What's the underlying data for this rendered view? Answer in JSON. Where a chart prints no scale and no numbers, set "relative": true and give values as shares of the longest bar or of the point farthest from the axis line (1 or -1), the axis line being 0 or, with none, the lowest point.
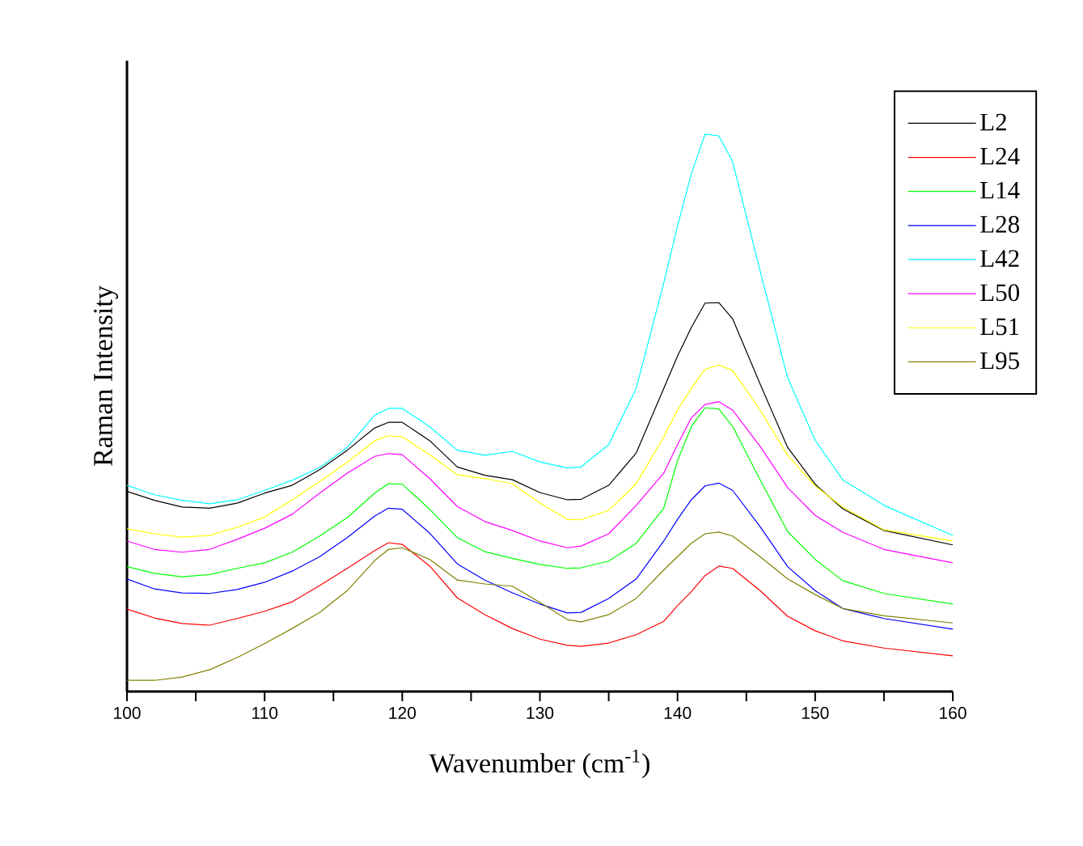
{
  "chart_data": {
    "type": "line",
    "relative": true,
    "xlabel": "Wavenumber (cm$^{-1}$)",
    "ylabel": "Raman Intensity",
    "legend": "top right",
    "xlim": [
      100,
      160
    ],
    "xticks": [
      100,
      {
        "value": 105,
        "label": null
      },
      110,
      {
        "value": 115,
        "label": null
      },
      120,
      {
        "value": 125,
        "label": null
      },
      130,
      {
        "value": 135,
        "label": null
      },
      140,
      {
        "value": 145,
        "label": null
      },
      150,
      {
        "value": 155,
        "label": null
      },
      160
    ],
    "x": [
      100,
      102,
      104,
      106,
      108,
      110,
      112,
      114,
      116,
      118,
      119,
      120,
      122,
      124,
      126,
      128,
      130,
      132,
      133,
      135,
      137,
      139,
      140,
      141,
      142,
      143,
      144,
      146,
      148,
      150,
      152,
      155,
      160
    ],
    "series": [
      {
        "name": "L2",
        "color": "#000000",
        "values": [
          0.359,
          0.343,
          0.331,
          0.329,
          0.338,
          0.356,
          0.37,
          0.398,
          0.433,
          0.473,
          0.483,
          0.483,
          0.45,
          0.403,
          0.388,
          0.38,
          0.357,
          0.344,
          0.345,
          0.37,
          0.428,
          0.544,
          0.602,
          0.653,
          0.697,
          0.698,
          0.669,
          0.552,
          0.438,
          0.372,
          0.328,
          0.289,
          0.263
        ]
      },
      {
        "name": "L24",
        "color": "#ff0000",
        "values": [
          0.148,
          0.132,
          0.122,
          0.119,
          0.131,
          0.144,
          0.161,
          0.19,
          0.221,
          0.253,
          0.267,
          0.264,
          0.225,
          0.168,
          0.138,
          0.113,
          0.094,
          0.083,
          0.081,
          0.087,
          0.102,
          0.126,
          0.154,
          0.179,
          0.208,
          0.225,
          0.221,
          0.181,
          0.135,
          0.109,
          0.091,
          0.078,
          0.064
        ]
      },
      {
        "name": "L14",
        "color": "#00ff00",
        "values": [
          0.224,
          0.212,
          0.206,
          0.21,
          0.221,
          0.231,
          0.25,
          0.279,
          0.312,
          0.356,
          0.373,
          0.372,
          0.327,
          0.276,
          0.251,
          0.239,
          0.228,
          0.221,
          0.222,
          0.234,
          0.266,
          0.329,
          0.414,
          0.475,
          0.509,
          0.507,
          0.476,
          0.38,
          0.287,
          0.237,
          0.199,
          0.176,
          0.157
        ]
      },
      {
        "name": "L28",
        "color": "#0000ff",
        "values": [
          0.202,
          0.184,
          0.177,
          0.176,
          0.183,
          0.196,
          0.216,
          0.242,
          0.276,
          0.315,
          0.329,
          0.327,
          0.284,
          0.229,
          0.2,
          0.177,
          0.157,
          0.141,
          0.142,
          0.167,
          0.202,
          0.27,
          0.309,
          0.344,
          0.369,
          0.374,
          0.361,
          0.296,
          0.224,
          0.181,
          0.149,
          0.131,
          0.112
        ]
      },
      {
        "name": "L42",
        "color": "#00ffff",
        "values": [
          0.37,
          0.353,
          0.343,
          0.337,
          0.344,
          0.361,
          0.379,
          0.402,
          0.438,
          0.496,
          0.508,
          0.508,
          0.475,
          0.433,
          0.424,
          0.431,
          0.412,
          0.401,
          0.403,
          0.443,
          0.544,
          0.733,
          0.835,
          0.929,
          1.0,
          0.997,
          0.951,
          0.755,
          0.563,
          0.451,
          0.38,
          0.334,
          0.28
        ]
      },
      {
        "name": "L50",
        "color": "#ff00ff",
        "values": [
          0.27,
          0.255,
          0.25,
          0.255,
          0.273,
          0.293,
          0.318,
          0.356,
          0.392,
          0.422,
          0.427,
          0.425,
          0.382,
          0.332,
          0.305,
          0.289,
          0.27,
          0.258,
          0.261,
          0.283,
          0.334,
          0.392,
          0.443,
          0.491,
          0.515,
          0.52,
          0.505,
          0.44,
          0.366,
          0.316,
          0.286,
          0.255,
          0.231
        ]
      },
      {
        "name": "L51",
        "color": "#ffff00",
        "values": [
          0.292,
          0.283,
          0.277,
          0.28,
          0.295,
          0.313,
          0.344,
          0.377,
          0.411,
          0.45,
          0.459,
          0.457,
          0.425,
          0.389,
          0.382,
          0.373,
          0.338,
          0.309,
          0.308,
          0.325,
          0.373,
          0.457,
          0.505,
          0.544,
          0.578,
          0.586,
          0.576,
          0.505,
          0.424,
          0.369,
          0.331,
          0.29,
          0.27
        ]
      },
      {
        "name": "L95",
        "color": "#808000",
        "values": [
          0.02,
          0.02,
          0.026,
          0.039,
          0.061,
          0.086,
          0.113,
          0.142,
          0.181,
          0.235,
          0.255,
          0.258,
          0.237,
          0.2,
          0.193,
          0.189,
          0.16,
          0.129,
          0.125,
          0.138,
          0.167,
          0.218,
          0.242,
          0.266,
          0.283,
          0.286,
          0.279,
          0.242,
          0.202,
          0.174,
          0.149,
          0.136,
          0.123
        ]
      }
    ]
  }
}
